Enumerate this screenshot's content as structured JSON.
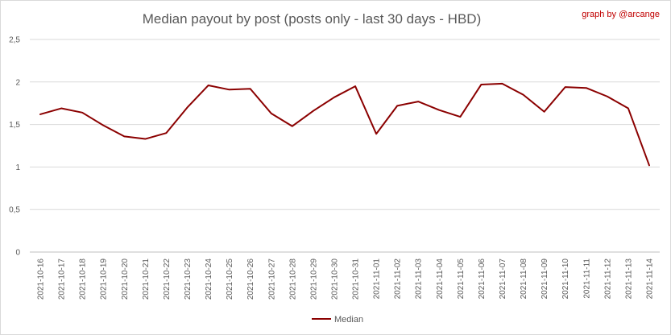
{
  "chart_data": {
    "type": "line",
    "title": "Median payout by post (posts only - last 30 days - HBD)",
    "credit": "graph by @arcange",
    "x": [
      "2021-10-16",
      "2021-10-17",
      "2021-10-18",
      "2021-10-19",
      "2021-10-20",
      "2021-10-21",
      "2021-10-22",
      "2021-10-23",
      "2021-10-24",
      "2021-10-25",
      "2021-10-26",
      "2021-10-27",
      "2021-10-28",
      "2021-10-29",
      "2021-10-30",
      "2021-10-31",
      "2021-11-01",
      "2021-11-02",
      "2021-11-03",
      "2021-11-04",
      "2021-11-05",
      "2021-11-06",
      "2021-11-07",
      "2021-11-08",
      "2021-11-09",
      "2021-11-10",
      "2021-11-11",
      "2021-11-12",
      "2021-11-13",
      "2021-11-14"
    ],
    "series": [
      {
        "name": "Median",
        "color": "#8b0000",
        "values": [
          1.62,
          1.69,
          1.64,
          1.49,
          1.36,
          1.33,
          1.4,
          1.7,
          1.96,
          1.91,
          1.92,
          1.63,
          1.48,
          1.66,
          1.82,
          1.95,
          1.39,
          1.72,
          1.77,
          1.67,
          1.59,
          1.97,
          1.98,
          1.85,
          1.65,
          1.94,
          1.93,
          1.83,
          1.69,
          1.02
        ]
      }
    ],
    "ylim": [
      0,
      2.5
    ],
    "yticks": [
      0,
      0.5,
      1,
      1.5,
      2,
      2.5
    ],
    "ytick_labels": [
      "0",
      "0,5",
      "1",
      "1,5",
      "2",
      "2,5"
    ],
    "grid": true,
    "legend_position": "bottom"
  }
}
